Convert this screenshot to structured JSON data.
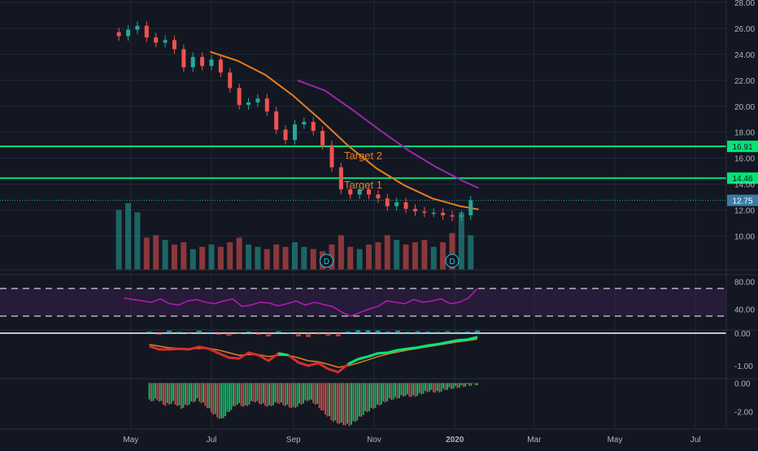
{
  "chart_data": {
    "type": "candlestick",
    "colors": {
      "background": "#131722",
      "grid": "#232838",
      "axis_text": "#b2b5be",
      "up": "#26a69a",
      "down": "#ef5350",
      "target_line": "#00e676",
      "ma_short": "#e67e22",
      "ma_long": "#9c27b0",
      "rsi_line": "#b71ab4",
      "rsi_band": "#3a1f4f",
      "macd_fast": "#00e676",
      "macd_slow": "#d32f2f",
      "macd_signal": "#e67e22",
      "price_label": "#3a7ca5"
    },
    "price_axis": {
      "ylim": [
        7.4,
        28.0
      ],
      "ticks": [
        "28.00",
        "26.00",
        "24.00",
        "22.00",
        "20.00",
        "18.00",
        "16.00",
        "14.00",
        "12.00",
        "10.00"
      ]
    },
    "time_axis": {
      "labels": [
        "May",
        "Jul",
        "Sep",
        "Nov",
        "2020",
        "Mar",
        "May",
        "Jul"
      ]
    },
    "horizontal_levels": [
      {
        "value": 16.91,
        "label": "16.91",
        "annotation": "Target 2"
      },
      {
        "value": 14.46,
        "label": "14.46",
        "annotation": "Target 1"
      }
    ],
    "last_price": {
      "value": 12.75,
      "label": "12.75"
    },
    "price_series": [
      {
        "date": "2019-04-22",
        "close": 25.4
      },
      {
        "date": "2019-04-29",
        "close": 25.9
      },
      {
        "date": "2019-05-06",
        "close": 26.2
      },
      {
        "date": "2019-05-13",
        "close": 25.3
      },
      {
        "date": "2019-05-20",
        "close": 24.9
      },
      {
        "date": "2019-05-27",
        "close": 25.1
      },
      {
        "date": "2019-06-03",
        "close": 24.4
      },
      {
        "date": "2019-06-10",
        "close": 23.0
      },
      {
        "date": "2019-06-17",
        "close": 23.8
      },
      {
        "date": "2019-06-24",
        "close": 23.1
      },
      {
        "date": "2019-07-01",
        "close": 23.6
      },
      {
        "date": "2019-07-08",
        "close": 22.6
      },
      {
        "date": "2019-07-15",
        "close": 21.4
      },
      {
        "date": "2019-07-22",
        "close": 20.1
      },
      {
        "date": "2019-07-29",
        "close": 20.3
      },
      {
        "date": "2019-08-05",
        "close": 20.6
      },
      {
        "date": "2019-08-12",
        "close": 19.6
      },
      {
        "date": "2019-08-19",
        "close": 18.2
      },
      {
        "date": "2019-08-26",
        "close": 17.4
      },
      {
        "date": "2019-09-02",
        "close": 18.6
      },
      {
        "date": "2019-09-09",
        "close": 18.8
      },
      {
        "date": "2019-09-16",
        "close": 18.1
      },
      {
        "date": "2019-09-23",
        "close": 17.0
      },
      {
        "date": "2019-09-30",
        "close": 15.3
      },
      {
        "date": "2019-10-07",
        "close": 13.6
      },
      {
        "date": "2019-10-14",
        "close": 13.2
      },
      {
        "date": "2019-10-21",
        "close": 13.6
      },
      {
        "date": "2019-10-28",
        "close": 13.2
      },
      {
        "date": "2019-11-04",
        "close": 12.9
      },
      {
        "date": "2019-11-11",
        "close": 12.3
      },
      {
        "date": "2019-11-18",
        "close": 12.6
      },
      {
        "date": "2019-11-25",
        "close": 12.1
      },
      {
        "date": "2019-12-02",
        "close": 11.9
      },
      {
        "date": "2019-12-09",
        "close": 11.8
      },
      {
        "date": "2019-12-16",
        "close": 11.8
      },
      {
        "date": "2019-12-23",
        "close": 11.6
      },
      {
        "date": "2019-12-30",
        "close": 11.5
      },
      {
        "date": "2020-01-06",
        "close": 11.6
      },
      {
        "date": "2020-01-13",
        "close": 12.75
      }
    ],
    "ma_short": [
      {
        "date": "2019-06-30",
        "value": 24.2
      },
      {
        "date": "2019-07-21",
        "value": 23.5
      },
      {
        "date": "2019-08-11",
        "value": 22.4
      },
      {
        "date": "2019-09-01",
        "value": 20.8
      },
      {
        "date": "2019-09-22",
        "value": 18.9
      },
      {
        "date": "2019-10-13",
        "value": 16.9
      },
      {
        "date": "2019-11-03",
        "value": 15.2
      },
      {
        "date": "2019-11-24",
        "value": 13.9
      },
      {
        "date": "2019-12-15",
        "value": 12.9
      },
      {
        "date": "2020-01-05",
        "value": 12.3
      },
      {
        "date": "2020-01-19",
        "value": 12.05
      }
    ],
    "ma_long": [
      {
        "date": "2019-09-04",
        "value": 22.0
      },
      {
        "date": "2019-09-25",
        "value": 21.2
      },
      {
        "date": "2019-10-16",
        "value": 19.7
      },
      {
        "date": "2019-11-06",
        "value": 18.1
      },
      {
        "date": "2019-11-27",
        "value": 16.6
      },
      {
        "date": "2019-12-18",
        "value": 15.3
      },
      {
        "date": "2020-01-08",
        "value": 14.2
      },
      {
        "date": "2020-01-19",
        "value": 13.7
      }
    ],
    "volume": [
      52,
      58,
      50,
      28,
      30,
      26,
      22,
      24,
      18,
      20,
      22,
      20,
      24,
      28,
      22,
      20,
      18,
      22,
      20,
      24,
      20,
      18,
      16,
      22,
      30,
      20,
      18,
      22,
      24,
      30,
      26,
      22,
      24,
      26,
      20,
      24,
      32,
      50,
      30
    ],
    "dividend_markers": [
      {
        "date": "2019-09-26",
        "label": "D"
      },
      {
        "date": "2019-12-30",
        "label": "D"
      }
    ],
    "rsi": {
      "ticks": [
        "80.00",
        "40.00"
      ],
      "upper": 70,
      "lower": 30,
      "range": [
        10,
        90
      ],
      "values": [
        56,
        54,
        52,
        50,
        55,
        48,
        46,
        52,
        54,
        50,
        48,
        52,
        55,
        44,
        46,
        50,
        49,
        45,
        48,
        52,
        46,
        50,
        47,
        44,
        36,
        30,
        35,
        40,
        44,
        52,
        50,
        48,
        54,
        50,
        52,
        55,
        48,
        50,
        56,
        70
      ]
    },
    "macd": {
      "ticks": [
        "0.00",
        "-1.00"
      ],
      "range": [
        -1.4,
        0.1
      ],
      "fast": [
        -0.4,
        -0.5,
        -0.5,
        -0.48,
        -0.5,
        -0.42,
        -0.48,
        -0.62,
        -0.75,
        -0.78,
        -0.6,
        -0.68,
        -0.85,
        -0.62,
        -0.68,
        -0.9,
        -1.0,
        -0.92,
        -1.1,
        -1.2,
        -0.95,
        -0.8,
        -0.72,
        -0.62,
        -0.6,
        -0.52,
        -0.48,
        -0.44,
        -0.38,
        -0.34,
        -0.28,
        -0.22,
        -0.2,
        -0.12
      ],
      "slow": [
        -0.35,
        -0.4,
        -0.45,
        -0.47,
        -0.48,
        -0.47,
        -0.47,
        -0.52,
        -0.6,
        -0.68,
        -0.66,
        -0.66,
        -0.72,
        -0.68,
        -0.68,
        -0.76,
        -0.85,
        -0.88,
        -0.96,
        -1.05,
        -1.0,
        -0.92,
        -0.82,
        -0.72,
        -0.64,
        -0.58,
        -0.52,
        -0.47,
        -0.42,
        -0.37,
        -0.32,
        -0.27,
        -0.23,
        -0.18
      ],
      "hist": [
        0.05,
        -0.05,
        0.08,
        0.04,
        -0.02,
        0.08,
        0.03,
        -0.05,
        -0.08,
        -0.02,
        0.05,
        -0.05,
        -0.1,
        0.06,
        0.02,
        -0.1,
        -0.12,
        -0.04,
        -0.08,
        -0.1,
        0.05,
        0.1,
        0.1,
        0.08,
        0.05,
        0.08,
        0.04,
        0.06,
        0.05,
        0.04,
        0.06,
        0.04,
        0.05,
        0.08
      ]
    },
    "oscillator": {
      "ticks": [
        "0.00",
        "-2.00"
      ],
      "range": [
        -3.2,
        0.3
      ],
      "values": [
        -1.3,
        -1.2,
        -1.6,
        -1.4,
        -1.8,
        -1.5,
        -1.2,
        -1.6,
        -2.2,
        -2.6,
        -2.0,
        -1.5,
        -1.7,
        -1.3,
        -1.5,
        -1.7,
        -1.4,
        -1.6,
        -1.8,
        -1.5,
        -1.2,
        -1.6,
        -2.2,
        -2.7,
        -2.9,
        -3.0,
        -2.6,
        -2.1,
        -1.8,
        -1.5,
        -1.2,
        -1.1,
        -0.9,
        -1.0,
        -0.8,
        -0.6,
        -0.7,
        -0.5,
        -0.4,
        -0.3,
        -0.2,
        -0.15
      ]
    }
  }
}
